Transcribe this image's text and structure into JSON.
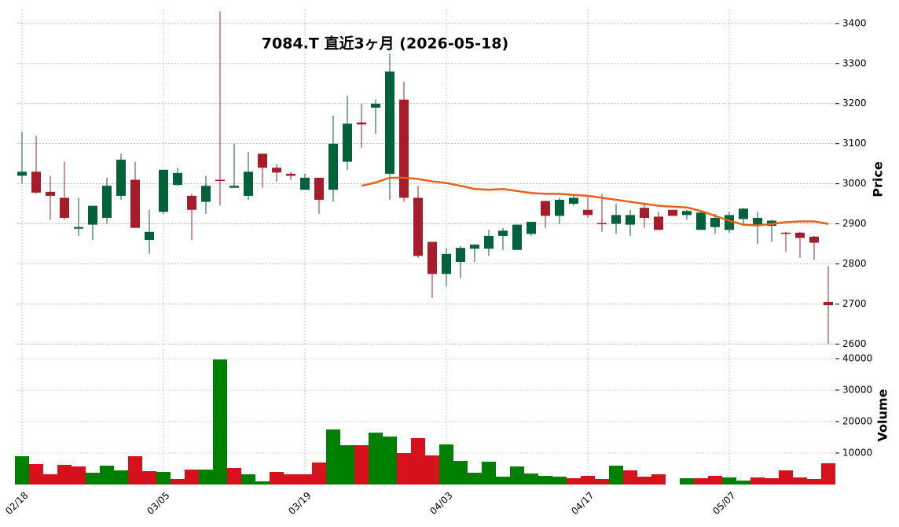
{
  "chart_data": [
    {
      "type": "candlestick",
      "title": "7084.T  直近3ヶ月 (2026-05-18)",
      "ylabel": "Price",
      "categories": [
        "02/18",
        null,
        null,
        null,
        null,
        null,
        null,
        null,
        null,
        null,
        "03/05",
        null,
        null,
        null,
        null,
        null,
        null,
        null,
        null,
        null,
        "03/19",
        null,
        null,
        null,
        null,
        null,
        null,
        null,
        null,
        null,
        "04/03",
        null,
        null,
        null,
        null,
        null,
        null,
        null,
        null,
        null,
        "04/17",
        null,
        null,
        null,
        null,
        null,
        null,
        null,
        null,
        null,
        "05/07",
        null,
        null,
        null,
        null,
        null,
        null,
        null
      ],
      "open": [
        3020,
        3030,
        2980,
        2965,
        2888,
        2898,
        2915,
        2970,
        3010,
        2860,
        2930,
        2997,
        2970,
        2955,
        3010,
        2990,
        2970,
        3075,
        3040,
        3025,
        2985,
        3015,
        2985,
        3055,
        3153,
        3190,
        3025,
        3210,
        2965,
        2855,
        2775,
        2805,
        2838,
        2838,
        2870,
        2835,
        2875,
        2957,
        2920,
        2950,
        2935,
        2902,
        2900,
        2898,
        2940,
        2918,
        2935,
        2922,
        2885,
        2892,
        2885,
        2912,
        2895,
        2895,
        2878,
        2878,
        2868,
        2705
      ],
      "high": [
        3130,
        3120,
        3020,
        3055,
        2965,
        2945,
        3015,
        3075,
        3055,
        2935,
        3035,
        3040,
        2975,
        3020,
        3430,
        3100,
        3080,
        3075,
        3048,
        3030,
        3025,
        3015,
        3170,
        3220,
        3200,
        3210,
        3325,
        3255,
        2995,
        2855,
        2840,
        2845,
        2850,
        2885,
        2890,
        2898,
        2905,
        2957,
        2965,
        2975,
        2970,
        2975,
        2950,
        2935,
        2950,
        2930,
        2935,
        2935,
        2930,
        2925,
        2930,
        2940,
        2930,
        2910,
        2880,
        2880,
        2870,
        2795
      ],
      "low": [
        3000,
        2975,
        2910,
        2910,
        2870,
        2860,
        2900,
        2960,
        2890,
        2825,
        2925,
        2995,
        2860,
        2925,
        2945,
        2990,
        2960,
        2990,
        3005,
        3010,
        2985,
        2925,
        2955,
        3035,
        3090,
        3125,
        2960,
        2955,
        2815,
        2715,
        2745,
        2765,
        2805,
        2820,
        2835,
        2835,
        2870,
        2890,
        2900,
        2945,
        2915,
        2880,
        2875,
        2870,
        2890,
        2885,
        2920,
        2910,
        2885,
        2875,
        2878,
        2895,
        2850,
        2855,
        2830,
        2815,
        2810,
        2600
      ],
      "close": [
        3030,
        2978,
        2970,
        2915,
        2892,
        2945,
        2995,
        3060,
        2890,
        2880,
        3035,
        3027,
        2935,
        2995,
        3008,
        2995,
        3030,
        3040,
        3028,
        3020,
        3015,
        2960,
        3100,
        3150,
        3148,
        3200,
        3280,
        2965,
        2820,
        2775,
        2825,
        2840,
        2848,
        2870,
        2883,
        2898,
        2905,
        2920,
        2960,
        2965,
        2922,
        2900,
        2922,
        2922,
        2915,
        2885,
        2920,
        2932,
        2928,
        2915,
        2922,
        2938,
        2915,
        2908,
        2875,
        2865,
        2853,
        2697
      ],
      "up_color": "#00613a",
      "down_color": "#a31d2b",
      "line": {
        "color": "#e8601c",
        "values": [
          null,
          null,
          null,
          null,
          null,
          null,
          null,
          null,
          null,
          null,
          null,
          null,
          null,
          null,
          null,
          null,
          null,
          null,
          null,
          null,
          null,
          null,
          null,
          null,
          2995,
          3003,
          3015,
          3015,
          3012,
          3006,
          3002,
          2995,
          2987,
          2985,
          2987,
          2982,
          2977,
          2975,
          2975,
          2972,
          2970,
          2965,
          2960,
          2955,
          2950,
          2945,
          2943,
          2941,
          2932,
          2920,
          2908,
          2898,
          2896,
          2900,
          2904,
          2906,
          2906,
          2900
        ]
      },
      "ylim": [
        2595,
        3435
      ],
      "yticks": [
        2600,
        2700,
        2800,
        2900,
        3000,
        3100,
        3200,
        3300,
        3400
      ],
      "grid": true
    },
    {
      "type": "bar",
      "ylabel": "Volume",
      "values": [
        9000,
        6500,
        3250,
        6250,
        5750,
        3750,
        6000,
        4500,
        9000,
        4250,
        4000,
        1750,
        4750,
        4750,
        39750,
        5250,
        3250,
        1000,
        4000,
        3250,
        3250,
        7000,
        17500,
        12500,
        12500,
        16500,
        15250,
        10000,
        14750,
        9250,
        12750,
        7500,
        3750,
        7250,
        2500,
        5750,
        3500,
        2750,
        2500,
        2000,
        2750,
        1750,
        6000,
        4500,
        2500,
        3250,
        0,
        2000,
        2000,
        2750,
        2250,
        1250,
        2250,
        2000,
        4500,
        2250,
        1750,
        6750
      ],
      "colors": [
        "#008000",
        "#d7111b",
        "#d7111b",
        "#d7111b",
        "#d7111b",
        "#008000",
        "#008000",
        "#008000",
        "#d7111b",
        "#d7111b",
        "#008000",
        "#d7111b",
        "#d7111b",
        "#008000",
        "#008000",
        "#d7111b",
        "#008000",
        "#008000",
        "#d7111b",
        "#d7111b",
        "#d7111b",
        "#d7111b",
        "#008000",
        "#008000",
        "#d7111b",
        "#008000",
        "#008000",
        "#d7111b",
        "#d7111b",
        "#d7111b",
        "#008000",
        "#008000",
        "#008000",
        "#008000",
        "#008000",
        "#008000",
        "#008000",
        "#008000",
        "#008000",
        "#d7111b",
        "#d7111b",
        "#d7111b",
        "#008000",
        "#d7111b",
        "#d7111b",
        "#d7111b",
        "#d7111b",
        "#008000",
        "#d7111b",
        "#d7111b",
        "#008000",
        "#008000",
        "#d7111b",
        "#d7111b",
        "#d7111b",
        "#d7111b",
        "#d7111b",
        "#d7111b"
      ],
      "ylim": [
        0,
        43000
      ],
      "yticks": [
        10000,
        20000,
        30000,
        40000
      ],
      "grid": true
    }
  ]
}
